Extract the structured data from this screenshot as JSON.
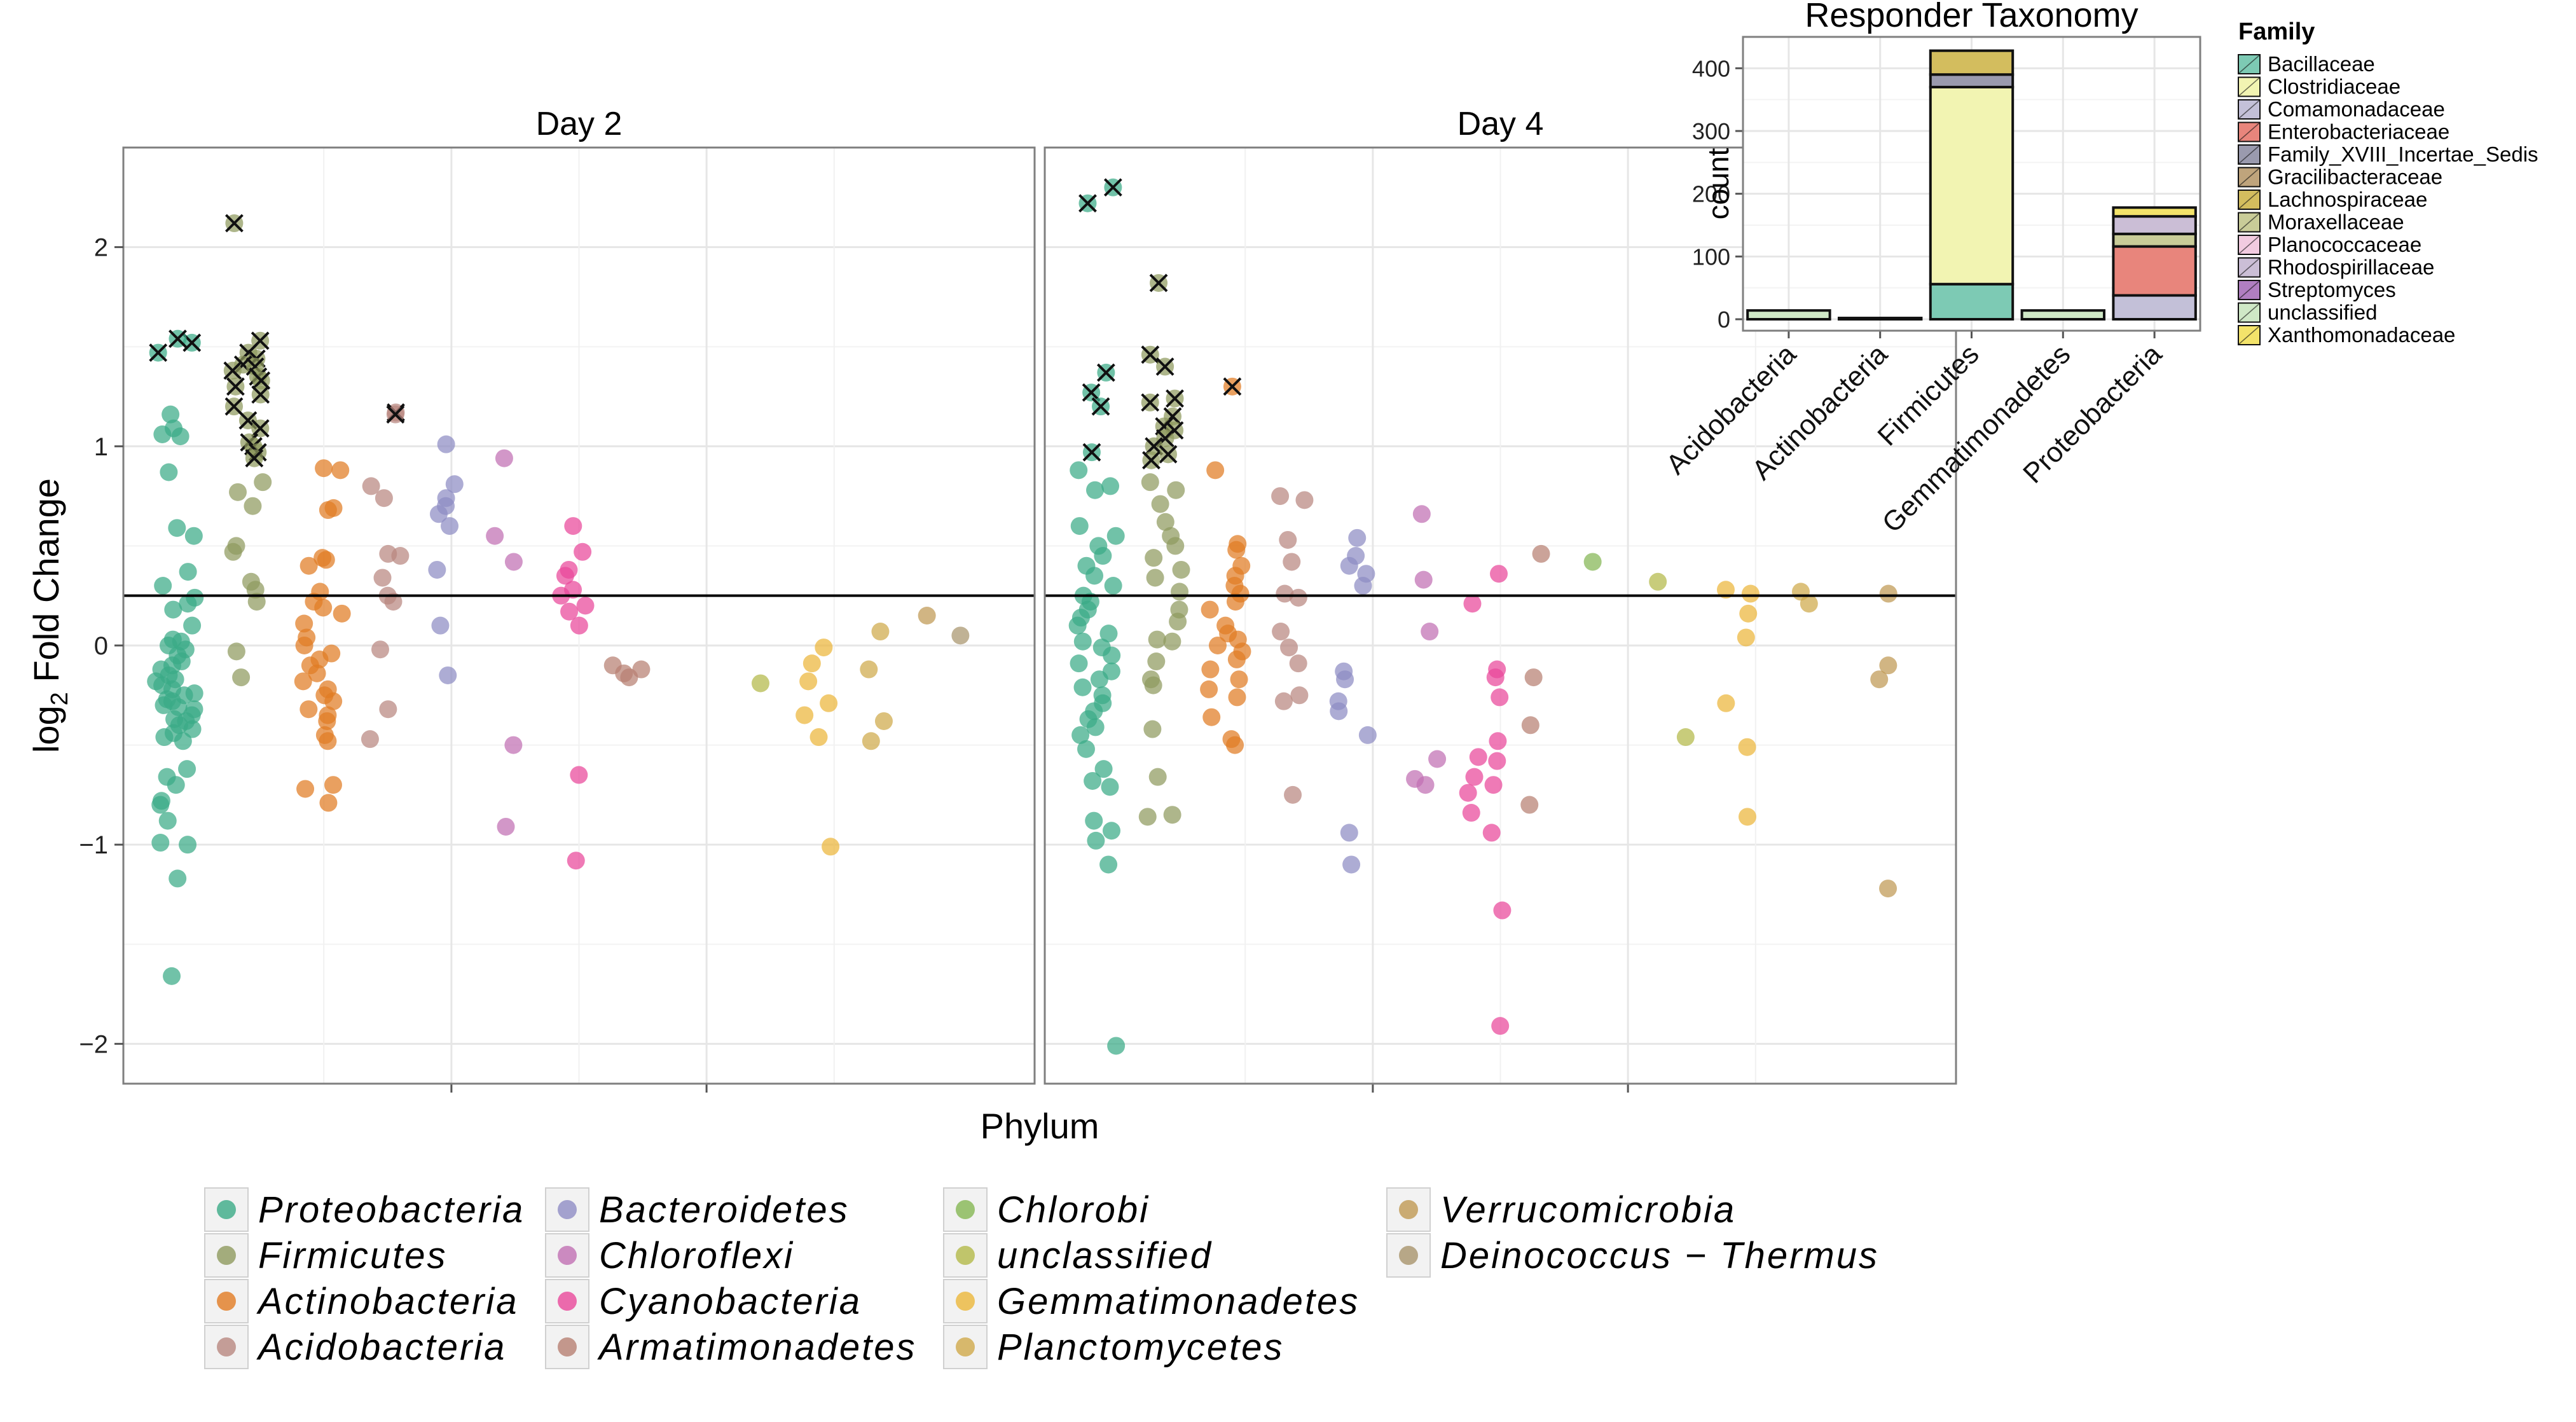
{
  "chart_data": [
    {
      "type": "scatter",
      "facets": [
        "Day 2",
        "Day 4"
      ],
      "xlabel": "Phylum",
      "ylabel_main": "log",
      "ylabel_sub": "2",
      "ylabel_rest": " Fold Change",
      "ylim": [
        -2.2,
        2.5
      ],
      "y_ticks": [
        "2",
        "1",
        "0",
        "−1",
        "−2"
      ],
      "y_tick_values": [
        2,
        1,
        0,
        -1,
        -2
      ],
      "reference_line_y": 0.25,
      "grid": true,
      "legend_position": "bottom",
      "legend": [
        {
          "name": "Proteobacteria",
          "color": "#3aaa86"
        },
        {
          "name": "Firmicutes",
          "color": "#8f9a5e"
        },
        {
          "name": "Actinobacteria",
          "color": "#e17b22"
        },
        {
          "name": "Acidobacteria",
          "color": "#b8877f"
        },
        {
          "name": "Bacteroidetes",
          "color": "#8e8cc4"
        },
        {
          "name": "Chloroflexi",
          "color": "#c06fb3"
        },
        {
          "name": "Cyanobacteria",
          "color": "#e9479a"
        },
        {
          "name": "Armatimonadetes",
          "color": "#b77f72"
        },
        {
          "name": "Chlorobi",
          "color": "#84b653"
        },
        {
          "name": "unclassified",
          "color": "#b3b948"
        },
        {
          "name": "Gemmatimonadetes",
          "color": "#ebb63a"
        },
        {
          "name": "Planctomycetes",
          "color": "#cfa94a"
        },
        {
          "name": "Verrucomicrobia",
          "color": "#bf9853"
        },
        {
          "name": "Deinococcus − Thermus",
          "color": "#a8946c"
        }
      ],
      "series": [
        {
          "facet": "Day 2",
          "phylum": "Proteobacteria",
          "x_range": [
            1.0,
            2.2
          ],
          "values": [
            1.52,
            1.47,
            1.54,
            1.16,
            1.09,
            1.05,
            1.06,
            0.87,
            0.59,
            0.55,
            0.37,
            0.3,
            0.24,
            0.21,
            0.18,
            0.1,
            0.03,
            0.02,
            0.0,
            -0.02,
            -0.05,
            -0.08,
            -0.1,
            -0.12,
            -0.15,
            -0.17,
            -0.18,
            -0.2,
            -0.22,
            -0.24,
            -0.25,
            -0.27,
            -0.28,
            -0.3,
            -0.31,
            -0.32,
            -0.35,
            -0.37,
            -0.38,
            -0.4,
            -0.42,
            -0.44,
            -0.46,
            -0.48,
            -0.62,
            -0.66,
            -0.7,
            -0.78,
            -0.8,
            -0.88,
            -0.99,
            -1.0,
            -1.17,
            -1.66
          ],
          "crossed": [
            1.52,
            1.47,
            1.54
          ]
        },
        {
          "facet": "Day 2",
          "phylum": "Firmicutes",
          "x_range": [
            3.3,
            4.3
          ],
          "values": [
            2.12,
            1.53,
            1.47,
            1.44,
            1.41,
            1.4,
            1.38,
            1.35,
            1.33,
            1.3,
            1.26,
            1.2,
            1.13,
            1.09,
            1.02,
            1.0,
            0.97,
            0.94,
            0.82,
            0.77,
            0.7,
            0.5,
            0.47,
            0.32,
            0.28,
            0.22,
            -0.03,
            -0.16
          ],
          "crossed": [
            2.12,
            1.53,
            1.47,
            1.44,
            1.41,
            1.4,
            1.38,
            1.35,
            1.33,
            1.3,
            1.26,
            1.2,
            1.13,
            1.09,
            1.02,
            1.0,
            0.97,
            0.94
          ]
        },
        {
          "facet": "Day 2",
          "phylum": "Actinobacteria",
          "x_range": [
            5.5,
            6.8
          ],
          "values": [
            0.89,
            0.88,
            0.69,
            0.68,
            0.44,
            0.43,
            0.4,
            0.27,
            0.22,
            0.19,
            0.16,
            0.11,
            0.04,
            0.0,
            -0.04,
            -0.07,
            -0.1,
            -0.14,
            -0.18,
            -0.22,
            -0.25,
            -0.28,
            -0.32,
            -0.35,
            -0.38,
            -0.45,
            -0.48,
            -0.7,
            -0.72,
            -0.79
          ],
          "crossed": []
        },
        {
          "facet": "Day 2",
          "phylum": "Acidobacteria",
          "x_range": [
            7.5,
            8.6
          ],
          "values": [
            1.17,
            1.16,
            0.8,
            0.74,
            0.46,
            0.45,
            0.34,
            0.25,
            0.22,
            -0.02,
            -0.32,
            -0.47
          ],
          "crossed": [
            1.17,
            1.16
          ]
        },
        {
          "facet": "Day 2",
          "phylum": "Bacteroidetes",
          "x_range": [
            9.5,
            10.3
          ],
          "values": [
            1.01,
            0.81,
            0.74,
            0.7,
            0.66,
            0.6,
            0.38,
            0.1,
            -0.15
          ],
          "crossed": []
        },
        {
          "facet": "Day 2",
          "phylum": "Chloroflexi",
          "x_range": [
            11.4,
            12.1
          ],
          "values": [
            0.94,
            0.55,
            0.42,
            -0.5,
            -0.91
          ],
          "crossed": []
        },
        {
          "facet": "Day 2",
          "phylum": "Cyanobacteria",
          "x_range": [
            13.4,
            14.2
          ],
          "values": [
            0.6,
            0.47,
            0.38,
            0.35,
            0.28,
            0.25,
            0.2,
            0.17,
            0.1,
            -0.65,
            -1.08
          ],
          "crossed": []
        },
        {
          "facet": "Day 2",
          "phylum": "Armatimonadetes",
          "x_range": [
            15.0,
            16.0
          ],
          "values": [
            -0.1,
            -0.12,
            -0.14,
            -0.16
          ],
          "crossed": []
        },
        {
          "facet": "Day 2",
          "phylum": "unclassified",
          "x_range": [
            19.5,
            19.9
          ],
          "values": [
            -0.19
          ],
          "crossed": []
        },
        {
          "facet": "Day 2",
          "phylum": "Gemmatimonadetes",
          "x_range": [
            20.8,
            22.0
          ],
          "values": [
            -0.01,
            -0.09,
            -0.18,
            -0.29,
            -0.35,
            -0.46,
            -1.01
          ],
          "crossed": []
        },
        {
          "facet": "Day 2",
          "phylum": "Planctomycetes",
          "x_range": [
            22.8,
            23.4
          ],
          "values": [
            0.07,
            -0.12,
            -0.38,
            -0.48
          ],
          "crossed": []
        },
        {
          "facet": "Day 2",
          "phylum": "Verrucomicrobia",
          "x_range": [
            24.5,
            24.9
          ],
          "values": [
            0.15
          ],
          "crossed": []
        },
        {
          "facet": "Day 2",
          "phylum": "Deinococcus − Thermus",
          "x_range": [
            25.6,
            26.0
          ],
          "values": [
            0.05
          ],
          "crossed": []
        },
        {
          "facet": "Day 4",
          "phylum": "Proteobacteria",
          "x_range": [
            1.0,
            2.2
          ],
          "values": [
            2.3,
            2.22,
            1.37,
            1.27,
            1.2,
            0.97,
            0.88,
            0.8,
            0.78,
            0.6,
            0.55,
            0.5,
            0.45,
            0.4,
            0.35,
            0.3,
            0.25,
            0.22,
            0.18,
            0.14,
            0.1,
            0.06,
            0.02,
            -0.01,
            -0.05,
            -0.09,
            -0.13,
            -0.17,
            -0.21,
            -0.25,
            -0.29,
            -0.33,
            -0.37,
            -0.41,
            -0.45,
            -0.52,
            -0.62,
            -0.68,
            -0.71,
            -0.88,
            -0.93,
            -0.98,
            -1.1,
            -2.01
          ],
          "crossed": [
            2.3,
            2.22,
            1.37,
            1.27,
            1.2,
            0.97
          ]
        },
        {
          "facet": "Day 4",
          "phylum": "Firmicutes",
          "x_range": [
            3.1,
            4.2
          ],
          "values": [
            1.82,
            1.46,
            1.4,
            1.24,
            1.22,
            1.15,
            1.1,
            1.08,
            1.04,
            1.0,
            0.96,
            0.93,
            0.82,
            0.78,
            0.71,
            0.62,
            0.55,
            0.5,
            0.44,
            0.38,
            0.34,
            0.27,
            0.18,
            0.12,
            0.03,
            0.02,
            -0.08,
            -0.17,
            -0.2,
            -0.42,
            -0.66,
            -0.85,
            -0.86
          ],
          "crossed": [
            1.82,
            1.46,
            1.4,
            1.24,
            1.22,
            1.15,
            1.1,
            1.08,
            1.04,
            1.0,
            0.96,
            0.93
          ]
        },
        {
          "facet": "Day 4",
          "phylum": "Actinobacteria",
          "x_range": [
            5.0,
            6.1
          ],
          "values": [
            1.3,
            0.88,
            0.51,
            0.48,
            0.4,
            0.35,
            0.3,
            0.26,
            0.22,
            0.18,
            0.1,
            0.06,
            0.03,
            0.0,
            -0.03,
            -0.07,
            -0.12,
            -0.17,
            -0.22,
            -0.26,
            -0.36,
            -0.47,
            -0.5
          ],
          "crossed": [
            1.3
          ]
        },
        {
          "facet": "Day 4",
          "phylum": "Acidobacteria",
          "x_range": [
            7.0,
            8.0
          ],
          "values": [
            0.75,
            0.73,
            0.53,
            0.42,
            0.26,
            0.24,
            0.07,
            -0.01,
            -0.09,
            -0.25,
            -0.28,
            -0.75
          ],
          "crossed": []
        },
        {
          "facet": "Day 4",
          "phylum": "Bacteroidetes",
          "x_range": [
            9.0,
            10.0
          ],
          "values": [
            0.54,
            0.45,
            0.4,
            0.36,
            0.3,
            -0.13,
            -0.17,
            -0.28,
            -0.33,
            -0.45,
            -0.94,
            -1.1
          ],
          "crossed": []
        },
        {
          "facet": "Day 4",
          "phylum": "Chloroflexi",
          "x_range": [
            11.0,
            12.2
          ],
          "values": [
            0.66,
            0.33,
            0.07,
            -0.57,
            -0.67,
            -0.7
          ],
          "crossed": []
        },
        {
          "facet": "Day 4",
          "phylum": "Cyanobacteria",
          "x_range": [
            13.0,
            14.1
          ],
          "values": [
            0.36,
            0.21,
            -0.12,
            -0.16,
            -0.26,
            -0.48,
            -0.56,
            -0.58,
            -0.66,
            -0.7,
            -0.74,
            -0.84,
            -0.94,
            -1.33,
            -1.91
          ],
          "crossed": []
        },
        {
          "facet": "Day 4",
          "phylum": "Armatimonadetes",
          "x_range": [
            14.8,
            16.0
          ],
          "values": [
            0.46,
            -0.16,
            -0.4,
            -0.8
          ],
          "crossed": []
        },
        {
          "facet": "Day 4",
          "phylum": "Chlorobi",
          "x_range": [
            16.6,
            17.0
          ],
          "values": [
            0.42
          ],
          "crossed": []
        },
        {
          "facet": "Day 4",
          "phylum": "unclassified",
          "x_range": [
            18.7,
            19.8
          ],
          "values": [
            0.32,
            -0.46
          ],
          "crossed": []
        },
        {
          "facet": "Day 4",
          "phylum": "Gemmatimonadetes",
          "x_range": [
            20.6,
            21.7
          ],
          "values": [
            0.28,
            0.26,
            0.16,
            0.04,
            -0.29,
            -0.51,
            -0.86
          ],
          "crossed": []
        },
        {
          "facet": "Day 4",
          "phylum": "Planctomycetes",
          "x_range": [
            23.0,
            23.8
          ],
          "values": [
            0.27,
            0.21
          ],
          "crossed": []
        },
        {
          "facet": "Day 4",
          "phylum": "Verrucomicrobia",
          "x_range": [
            25.6,
            26.0
          ],
          "values": [
            0.26,
            -0.1,
            -0.17,
            -1.22
          ],
          "crossed": []
        }
      ]
    },
    {
      "type": "bar",
      "stacked": true,
      "title": "Responder Taxonomy",
      "ylabel": "count",
      "ylim": [
        0,
        450
      ],
      "y_ticks": [
        "0",
        "100",
        "200",
        "300",
        "400"
      ],
      "y_tick_values": [
        0,
        100,
        200,
        300,
        400
      ],
      "categories": [
        "Acidobacteria",
        "Actinobacteria",
        "Firmicutes",
        "Gemmatimonadetes",
        "Proteobacteria"
      ],
      "legend_title": "Family",
      "legend_position": "right",
      "series": [
        {
          "name": "Bacillaceae",
          "color": "#7dcab4",
          "values": [
            0,
            0,
            56,
            0,
            0
          ]
        },
        {
          "name": "Clostridiaceae",
          "color": "#f2f4b2",
          "values": [
            0,
            0,
            314,
            0,
            0
          ]
        },
        {
          "name": "Comamonadaceae",
          "color": "#c3c0d8",
          "values": [
            0,
            0,
            0,
            0,
            38
          ]
        },
        {
          "name": "Enterobacteriaceae",
          "color": "#e8857c",
          "values": [
            0,
            0,
            0,
            0,
            78
          ]
        },
        {
          "name": "Family_XVIII_Incertae_Sedis",
          "color": "#9a9aae",
          "values": [
            0,
            0,
            20,
            0,
            0
          ]
        },
        {
          "name": "Gracilibacteraceae",
          "color": "#bfa47c",
          "values": [
            0,
            0,
            0,
            0,
            0
          ]
        },
        {
          "name": "Lachnospiraceae",
          "color": "#d3bd5e",
          "values": [
            0,
            0,
            38,
            0,
            0
          ]
        },
        {
          "name": "Moraxellaceae",
          "color": "#c9cc98",
          "values": [
            0,
            0,
            0,
            0,
            20
          ]
        },
        {
          "name": "Planococcaceae",
          "color": "#f2cbe0",
          "values": [
            0,
            0,
            0,
            0,
            0
          ]
        },
        {
          "name": "Rhodospirillaceae",
          "color": "#cbbed6",
          "values": [
            0,
            0,
            0,
            0,
            28
          ]
        },
        {
          "name": "Streptomyces",
          "color": "#b07ec1",
          "values": [
            0,
            2,
            0,
            0,
            0
          ]
        },
        {
          "name": "unclassified",
          "color": "#cfe8c6",
          "values": [
            14,
            0,
            0,
            14,
            0
          ]
        },
        {
          "name": "Xanthomonadaceae",
          "color": "#f3e36a",
          "values": [
            0,
            0,
            0,
            0,
            14
          ]
        }
      ]
    }
  ]
}
